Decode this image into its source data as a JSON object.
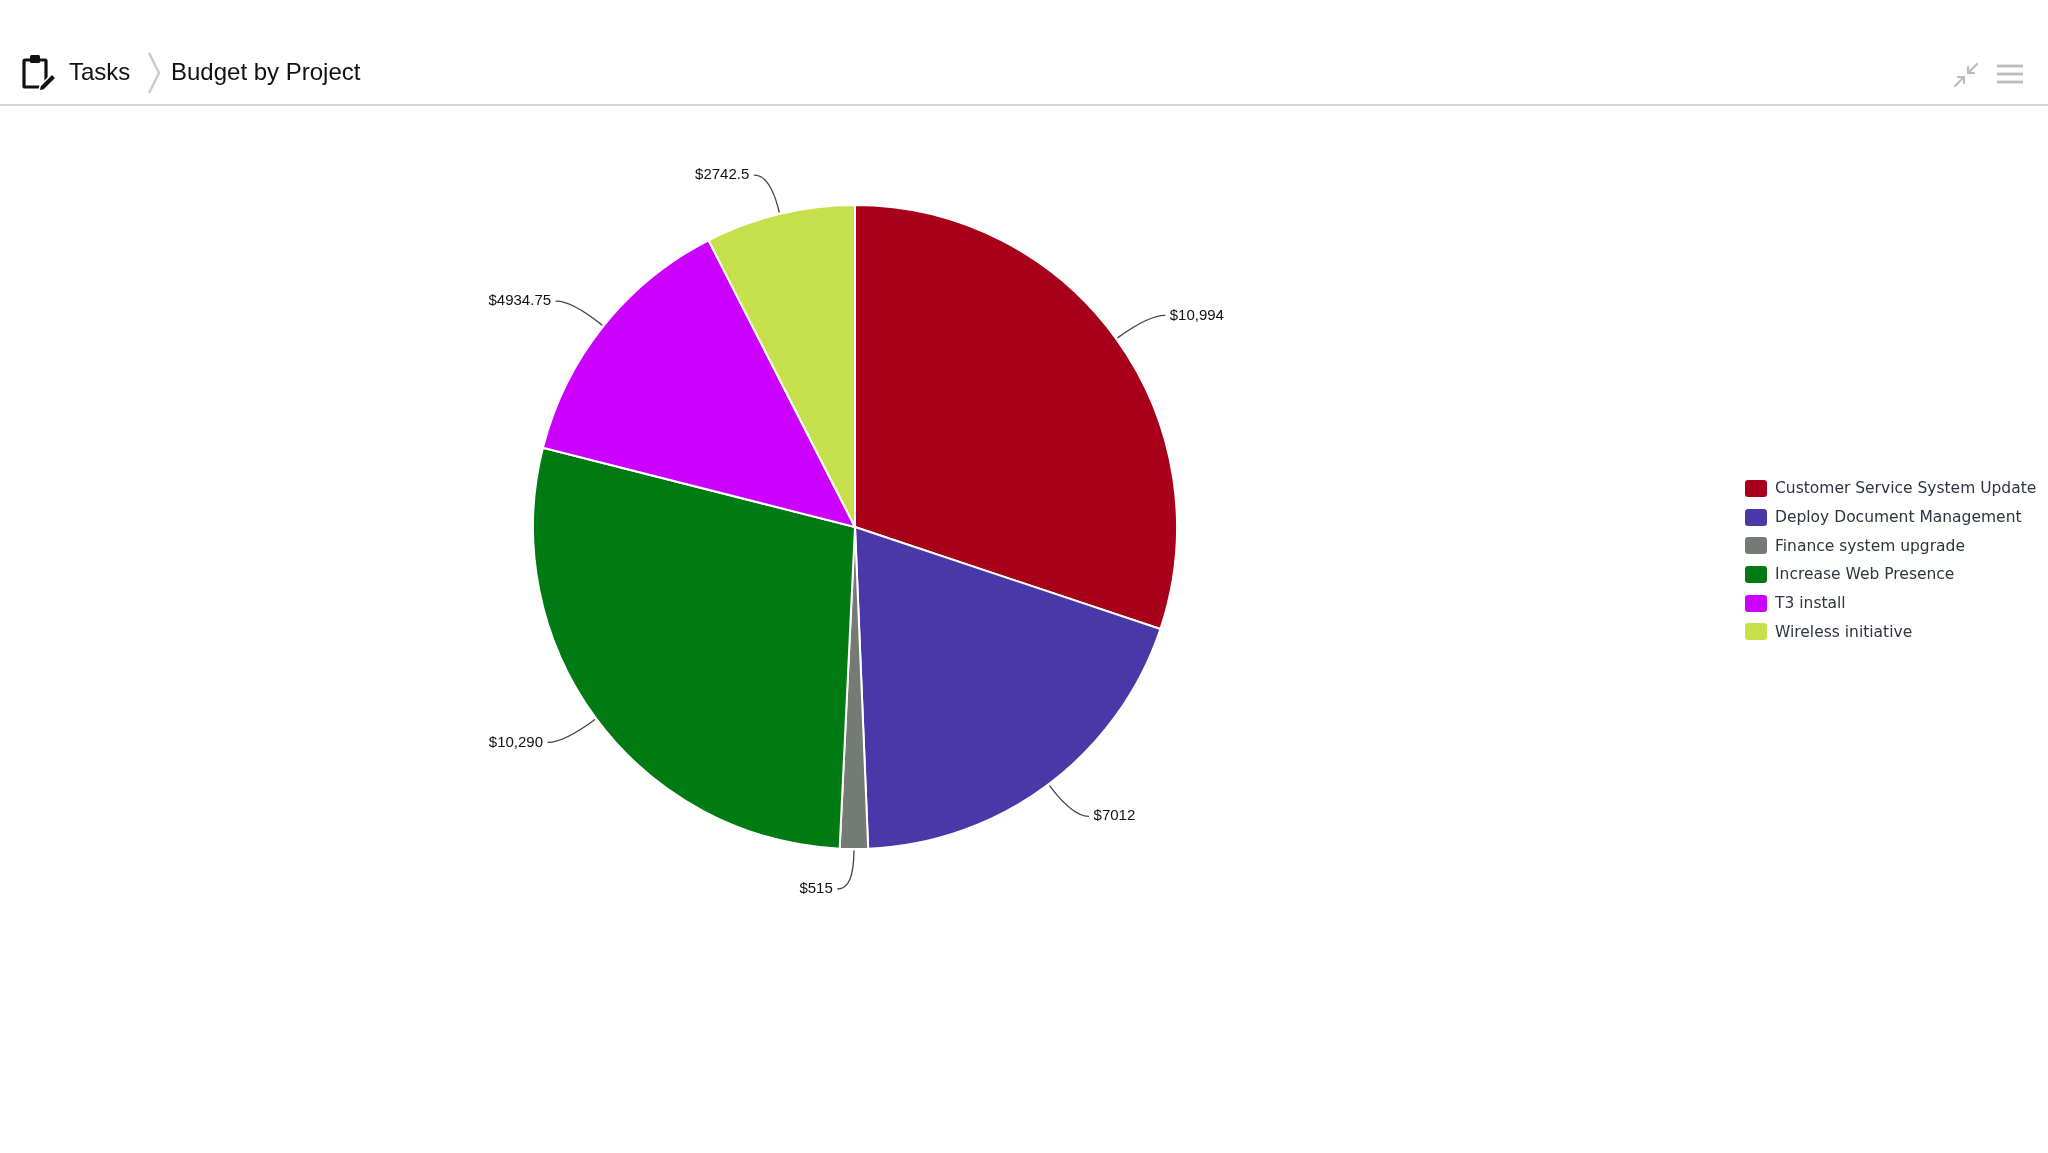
{
  "chart_data": {
    "type": "pie",
    "title": "Budget by Project",
    "annotations": [
      "Tasks"
    ],
    "categories": [
      "Customer Service System Update",
      "Deploy Document Management",
      "Finance system upgrade",
      "Increase Web Presence",
      "T3 install",
      "Wireless initiative"
    ],
    "values": [
      10994,
      7012,
      515,
      10290,
      4934.75,
      2742.5
    ],
    "value_labels": [
      "$10,994",
      "$7012",
      "$515",
      "$10,290",
      "$4934.75",
      "$2742.5"
    ],
    "colors": [
      "#a8001a",
      "#4b38a8",
      "#747a74",
      "#007a13",
      "#cc00ff",
      "#c6e04b"
    ],
    "legend": "right"
  }
}
